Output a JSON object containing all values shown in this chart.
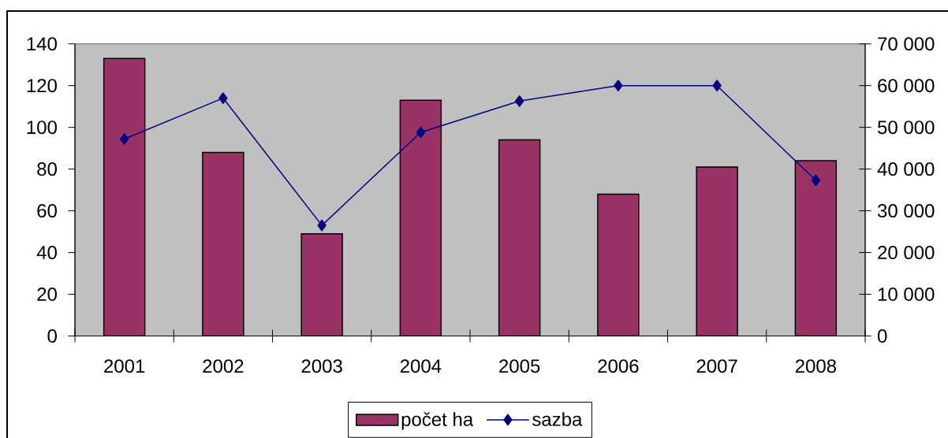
{
  "chart_data": {
    "type": "bar",
    "categories": [
      "2001",
      "2002",
      "2003",
      "2004",
      "2005",
      "2006",
      "2007",
      "2008"
    ],
    "series": [
      {
        "name": "počet ha",
        "color": "#993366",
        "values": [
          133,
          88,
          49,
          113,
          94,
          68,
          81,
          84
        ]
      },
      {
        "name": "sazba",
        "type": "line",
        "axis": "y2",
        "color": "#000080",
        "marker": "diamond",
        "line_style": "solid",
        "values": [
          47200,
          57000,
          26500,
          48800,
          56300,
          60000,
          60000,
          37300
        ]
      }
    ],
    "ylim": [
      0,
      140
    ],
    "yticks": [
      0,
      20,
      40,
      60,
      80,
      100,
      120,
      140
    ],
    "y2lim": [
      0,
      70000
    ],
    "y2ticks": [
      0,
      {
        "value": 10000,
        "label": "10 000"
      },
      {
        "value": 20000,
        "label": "20 000"
      },
      {
        "value": 30000,
        "label": "30 000"
      },
      {
        "value": 40000,
        "label": "40 000"
      },
      {
        "value": 50000,
        "label": "50 000"
      },
      {
        "value": 60000,
        "label": "60 000"
      },
      {
        "value": 70000,
        "label": "70 000"
      }
    ],
    "legend": "bottom"
  }
}
